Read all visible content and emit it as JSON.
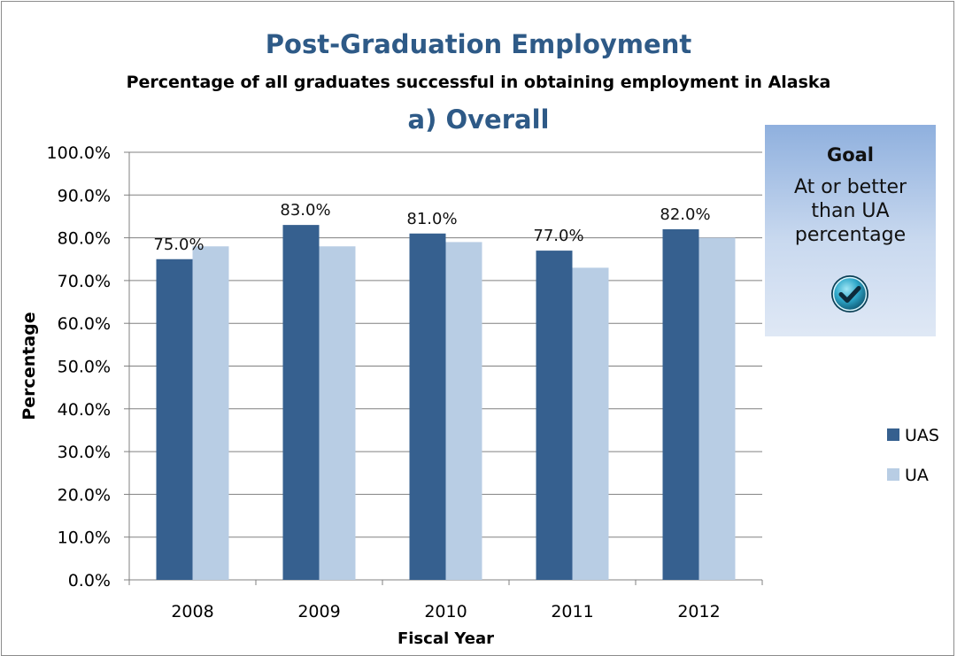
{
  "colors": {
    "uas": "#36608f",
    "ua": "#b8cde4",
    "title": "#2e5a87",
    "grid": "#808080"
  },
  "chart_data": {
    "type": "bar",
    "title": "Post-Graduation Employment",
    "subtitle": "Percentage of all graduates successful in obtaining employment in Alaska",
    "panel_title": "a) Overall",
    "xlabel": "Fiscal Year",
    "ylabel": "Percentage",
    "ylim": [
      0,
      100
    ],
    "y_ticks": [
      "0.0%",
      "10.0%",
      "20.0%",
      "30.0%",
      "40.0%",
      "50.0%",
      "60.0%",
      "70.0%",
      "80.0%",
      "90.0%",
      "100.0%"
    ],
    "categories": [
      "2008",
      "2009",
      "2010",
      "2011",
      "2012"
    ],
    "series": [
      {
        "name": "UAS",
        "values": [
          75,
          83,
          81,
          77,
          82
        ],
        "labels": [
          "75.0%",
          "83.0%",
          "81.0%",
          "77.0%",
          "82.0%"
        ]
      },
      {
        "name": "UA",
        "values": [
          78,
          78,
          79,
          73,
          80
        ]
      }
    ],
    "grid": true,
    "legend_position": "right"
  },
  "goal_box": {
    "heading": "Goal",
    "text": "At or better than UA percentage",
    "icon": "check-circle-icon"
  }
}
